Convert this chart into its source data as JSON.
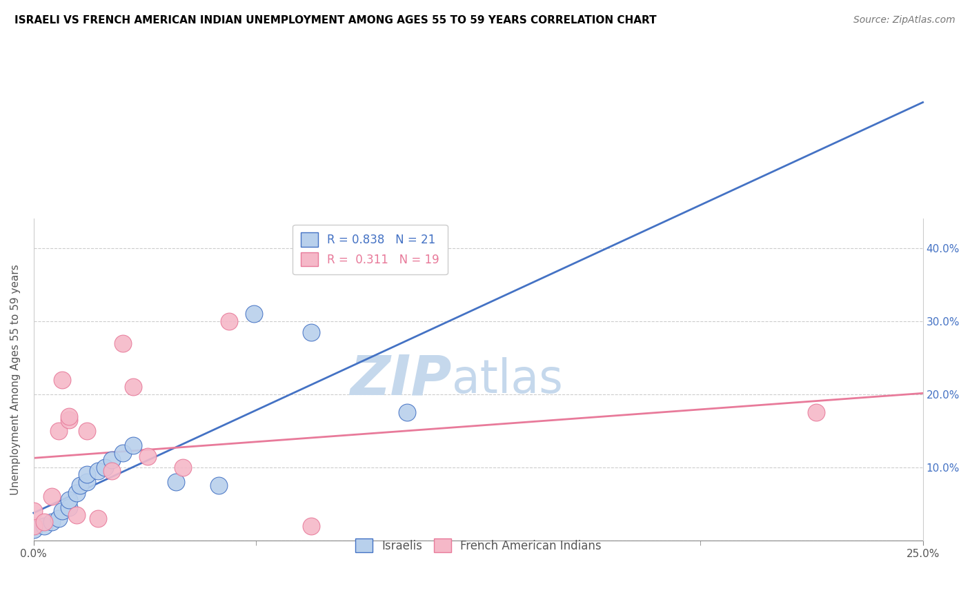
{
  "title": "ISRAELI VS FRENCH AMERICAN INDIAN UNEMPLOYMENT AMONG AGES 55 TO 59 YEARS CORRELATION CHART",
  "source": "Source: ZipAtlas.com",
  "ylabel": "Unemployment Among Ages 55 to 59 years",
  "xlim": [
    0.0,
    0.25
  ],
  "ylim": [
    0.0,
    0.44
  ],
  "xticks": [
    0.0,
    0.25
  ],
  "yticks": [
    0.0,
    0.1,
    0.2,
    0.3,
    0.4
  ],
  "xtick_labels": [
    "0.0%",
    "25.0%"
  ],
  "ytick_labels": [
    "",
    "10.0%",
    "20.0%",
    "30.0%",
    "40.0%"
  ],
  "r_israeli": 0.838,
  "n_israeli": 21,
  "r_french": 0.311,
  "n_french": 19,
  "israeli_color": "#b8d0ec",
  "french_color": "#f5b8c8",
  "israeli_line_color": "#4472c4",
  "french_line_color": "#e87a9a",
  "watermark_zip": "ZIP",
  "watermark_atlas": "atlas",
  "watermark_color_zip": "#c5d8ec",
  "watermark_color_atlas": "#c5d8ec",
  "israeli_x": [
    0.0,
    0.003,
    0.005,
    0.007,
    0.008,
    0.01,
    0.01,
    0.012,
    0.013,
    0.015,
    0.015,
    0.018,
    0.02,
    0.022,
    0.025,
    0.028,
    0.04,
    0.052,
    0.062,
    0.078,
    0.105
  ],
  "israeli_y": [
    0.015,
    0.02,
    0.025,
    0.03,
    0.04,
    0.045,
    0.055,
    0.065,
    0.075,
    0.08,
    0.09,
    0.095,
    0.1,
    0.11,
    0.12,
    0.13,
    0.08,
    0.075,
    0.31,
    0.285,
    0.175
  ],
  "french_x": [
    0.0,
    0.0,
    0.003,
    0.005,
    0.007,
    0.008,
    0.01,
    0.01,
    0.012,
    0.015,
    0.018,
    0.022,
    0.025,
    0.028,
    0.032,
    0.042,
    0.055,
    0.078,
    0.22
  ],
  "french_y": [
    0.02,
    0.04,
    0.025,
    0.06,
    0.15,
    0.22,
    0.165,
    0.17,
    0.035,
    0.15,
    0.03,
    0.095,
    0.27,
    0.21,
    0.115,
    0.1,
    0.3,
    0.02,
    0.175
  ]
}
